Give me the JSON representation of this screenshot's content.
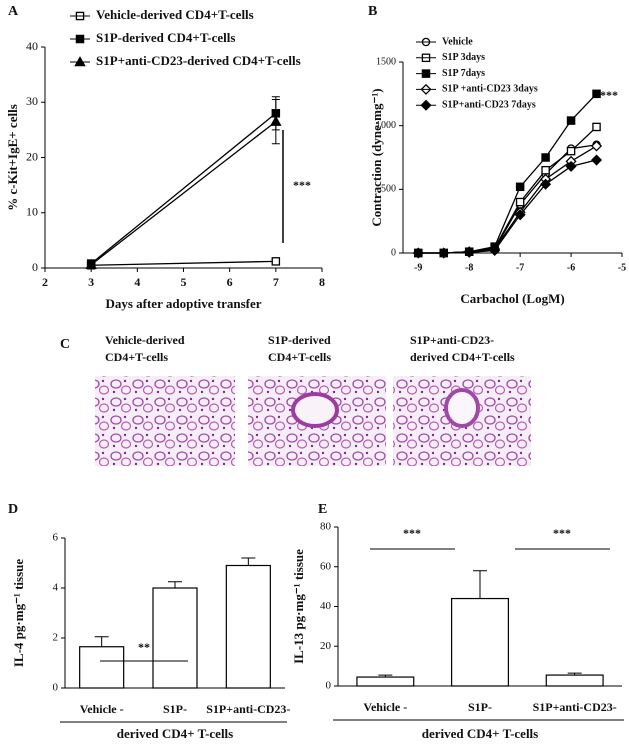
{
  "chart_data": [
    {
      "type": "line",
      "title": "A",
      "x_label": "Days after adoptive transfer",
      "y_label": "% c-Kit+IgE+ cells",
      "x": [
        3,
        7
      ],
      "xlim": [
        2,
        8
      ],
      "xticks": [
        2,
        3,
        4,
        5,
        6,
        7,
        8
      ],
      "ylim": [
        0,
        40
      ],
      "yticks": [
        0,
        10,
        20,
        30,
        40
      ],
      "annotations": [
        "***"
      ],
      "series": [
        {
          "name": "Vehicle-derived CD4+T-cells",
          "color": "#000000",
          "marker": "open-square",
          "values": [
            0.5,
            1.2
          ],
          "errors": [
            0.3,
            0.3
          ]
        },
        {
          "name": "S1P-derived CD4+T-cells",
          "color": "#000000",
          "marker": "square",
          "values": [
            0.8,
            28
          ],
          "errors": [
            0.5,
            3
          ]
        },
        {
          "name": "S1P+anti-CD23-derived CD4+T-cells",
          "color": "#000000",
          "marker": "triangle",
          "values": [
            0.6,
            26.5
          ],
          "errors": [
            0.4,
            4
          ]
        }
      ]
    },
    {
      "type": "line",
      "title": "B",
      "x_label": "Carbachol (LogM)",
      "y_label": "Contraction (dyne·mg⁻¹)",
      "x": [
        -9,
        -8.5,
        -8,
        -7.5,
        -7,
        -6.5,
        -6,
        -5.5
      ],
      "xlim": [
        -9.3,
        -5
      ],
      "xticks": [
        -9,
        -8,
        -7,
        -6,
        -5
      ],
      "ylim": [
        0,
        1500
      ],
      "yticks": [
        0,
        500,
        1000,
        1500
      ],
      "annotations": [
        "***"
      ],
      "series": [
        {
          "name": "Vehicle",
          "color": "#000000",
          "marker": "open-circle",
          "values": [
            0,
            0,
            10,
            30,
            380,
            620,
            820,
            850
          ]
        },
        {
          "name": "S1P 3days",
          "color": "#000000",
          "marker": "open-square",
          "values": [
            0,
            0,
            10,
            40,
            400,
            650,
            800,
            990
          ]
        },
        {
          "name": "S1P 7days",
          "color": "#000000",
          "marker": "square",
          "values": [
            0,
            0,
            10,
            50,
            520,
            750,
            1040,
            1250
          ]
        },
        {
          "name": "S1P +anti-CD23 3days",
          "color": "#000000",
          "marker": "open-diamond",
          "values": [
            0,
            0,
            10,
            30,
            320,
            580,
            720,
            840
          ]
        },
        {
          "name": "S1P+anti-CD23 7days",
          "color": "#000000",
          "marker": "diamond",
          "values": [
            0,
            0,
            5,
            20,
            300,
            540,
            680,
            730
          ]
        }
      ]
    },
    {
      "type": "bar",
      "title": "D",
      "x_label": "derived CD4+ T-cells",
      "y_label": "IL-4 pg·mg⁻¹ tissue",
      "categories": [
        "Vehicle -",
        "S1P-",
        "S1P+anti-CD23-"
      ],
      "values": [
        1.65,
        4.0,
        4.9
      ],
      "errors": [
        0.4,
        0.25,
        0.3
      ],
      "ylim": [
        0,
        6
      ],
      "yticks": [
        0,
        2,
        4,
        6
      ],
      "color": "#ffffff",
      "annotations": [
        "**"
      ]
    },
    {
      "type": "bar",
      "title": "E",
      "x_label": "derived CD4+ T-cells",
      "y_label": "IL-13 pg·mg⁻¹ tissue",
      "categories": [
        "Vehicle -",
        "S1P-",
        "S1P+anti-CD23-"
      ],
      "values": [
        4.5,
        44,
        5.5
      ],
      "errors": [
        1,
        14,
        1
      ],
      "ylim": [
        0,
        80
      ],
      "yticks": [
        0,
        20,
        40,
        60,
        80
      ],
      "color": "#ffffff",
      "annotations": [
        "***",
        "***"
      ]
    }
  ],
  "histology": {
    "panel": "C",
    "captions": [
      [
        "Vehicle-derived",
        "CD4+T-cells"
      ],
      [
        "S1P-derived",
        "CD4+T-cells"
      ],
      [
        "S1P+anti-CD23-",
        "derived  CD4+T-cells"
      ]
    ]
  }
}
